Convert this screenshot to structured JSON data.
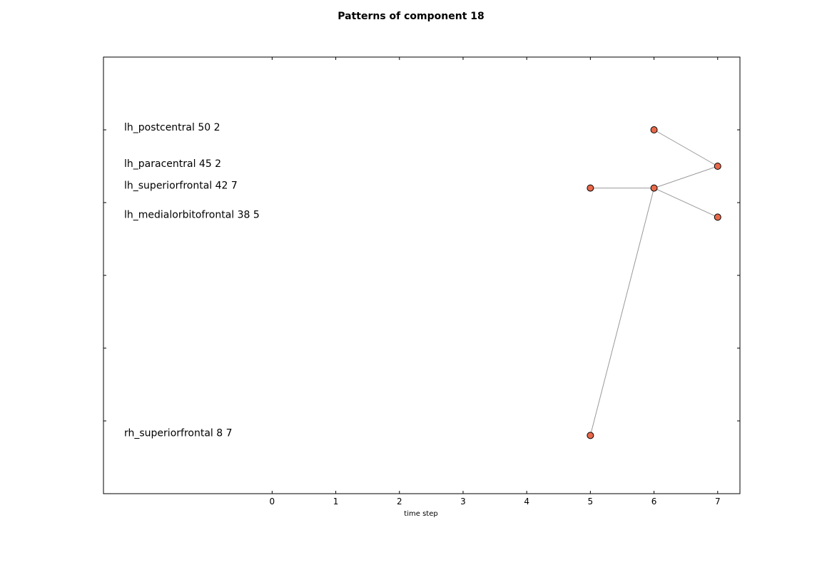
{
  "chart_data": {
    "type": "line",
    "title": "Patterns of component 18",
    "xlabel": "time step",
    "ylabel": "",
    "x_ticks": [
      0,
      1,
      2,
      3,
      4,
      5,
      6,
      7
    ],
    "xlim": [
      -2.65,
      7.35
    ],
    "ylim": [
      0,
      60
    ],
    "y_ticks": [
      10,
      20,
      30,
      40,
      50
    ],
    "y_tick_labels_shown": false,
    "grid": false,
    "legend": "none",
    "row_labels": [
      {
        "label": "lh_postcentral 50 2",
        "y": 50
      },
      {
        "label": "lh_paracentral 45 2",
        "y": 45
      },
      {
        "label": "lh_superiorfrontal 42 7",
        "y": 42
      },
      {
        "label": "lh_medialorbitofrontal 38 5",
        "y": 38
      },
      {
        "label": "rh_superiorfrontal 8 7",
        "y": 8
      }
    ],
    "points": [
      {
        "x": 6,
        "y": 50
      },
      {
        "x": 7,
        "y": 45
      },
      {
        "x": 5,
        "y": 42
      },
      {
        "x": 6,
        "y": 42
      },
      {
        "x": 7,
        "y": 38
      },
      {
        "x": 5,
        "y": 8
      }
    ],
    "edges": [
      {
        "from": [
          6,
          50
        ],
        "to": [
          7,
          45
        ]
      },
      {
        "from": [
          5,
          42
        ],
        "to": [
          6,
          42
        ]
      },
      {
        "from": [
          6,
          42
        ],
        "to": [
          7,
          45
        ]
      },
      {
        "from": [
          6,
          42
        ],
        "to": [
          7,
          38
        ]
      },
      {
        "from": [
          5,
          8
        ],
        "to": [
          6,
          42
        ]
      }
    ],
    "marker_color": "#e8694a",
    "edge_color": "#999999"
  }
}
